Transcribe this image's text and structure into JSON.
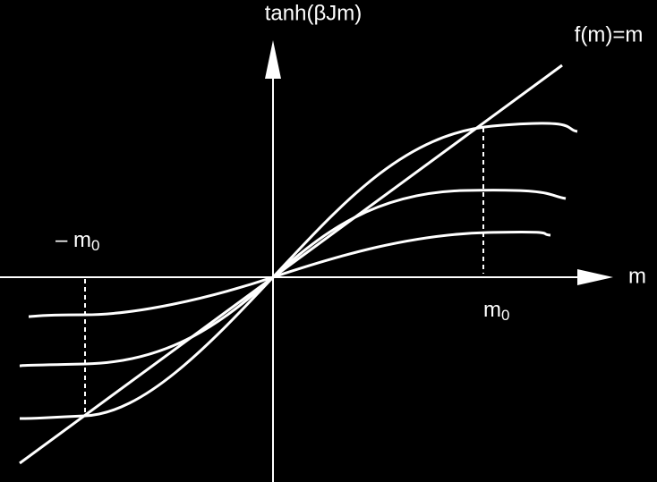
{
  "labels": {
    "y_axis": "tanh(βJm)",
    "line": "f(m)=m",
    "x_axis": "m",
    "m0": {
      "main": "m",
      "subscript": "0"
    },
    "minus_m0": {
      "main": "– m",
      "subscript": "0"
    }
  }
}
